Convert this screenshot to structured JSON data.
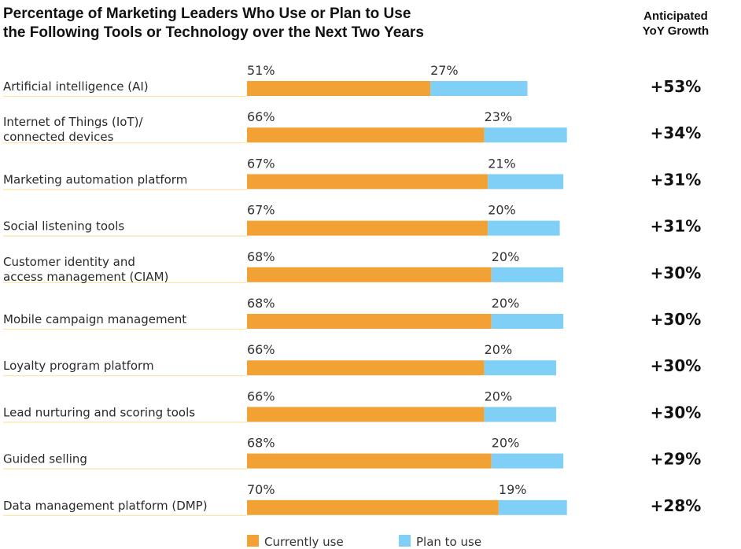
{
  "header": {
    "title_line1": "Percentage of Marketing Leaders Who Use or Plan to Use",
    "title_line2": "the Following Tools or Technology over the Next Two Years",
    "growth_heading_line1": "Anticipated",
    "growth_heading_line2": "YoY Growth"
  },
  "chart_data": {
    "type": "bar",
    "orientation": "horizontal-stacked",
    "title": "Percentage of Marketing Leaders Who Use or Plan to Use the Following Tools or Technology over the Next Two Years",
    "categories": [
      [
        "Artificial intelligence (AI)"
      ],
      [
        "Internet of Things (IoT)/",
        "connected devices"
      ],
      [
        "Marketing automation platform"
      ],
      [
        "Social listening tools"
      ],
      [
        "Customer identity and",
        "access management (CIAM)"
      ],
      [
        "Mobile campaign management"
      ],
      [
        "Loyalty program platform"
      ],
      [
        "Lead nurturing and scoring tools"
      ],
      [
        "Guided selling"
      ],
      [
        "Data management platform (DMP)"
      ]
    ],
    "series": [
      {
        "name": "Currently use",
        "color": "#f2a235",
        "values": [
          51,
          66,
          67,
          67,
          68,
          68,
          66,
          66,
          68,
          70
        ]
      },
      {
        "name": "Plan to use",
        "color": "#80cff7",
        "values": [
          27,
          23,
          21,
          20,
          20,
          20,
          20,
          20,
          20,
          19
        ]
      }
    ],
    "growth_column": {
      "heading": "Anticipated YoY Growth",
      "values": [
        "+53%",
        "+34%",
        "+31%",
        "+31%",
        "+30%",
        "+30%",
        "+30%",
        "+30%",
        "+29%",
        "+28%"
      ]
    },
    "value_suffix": "%",
    "xlim": [
      0,
      100
    ],
    "grid": false,
    "legend": "bottom-center",
    "row_rule_color": "#fbe3a6"
  }
}
